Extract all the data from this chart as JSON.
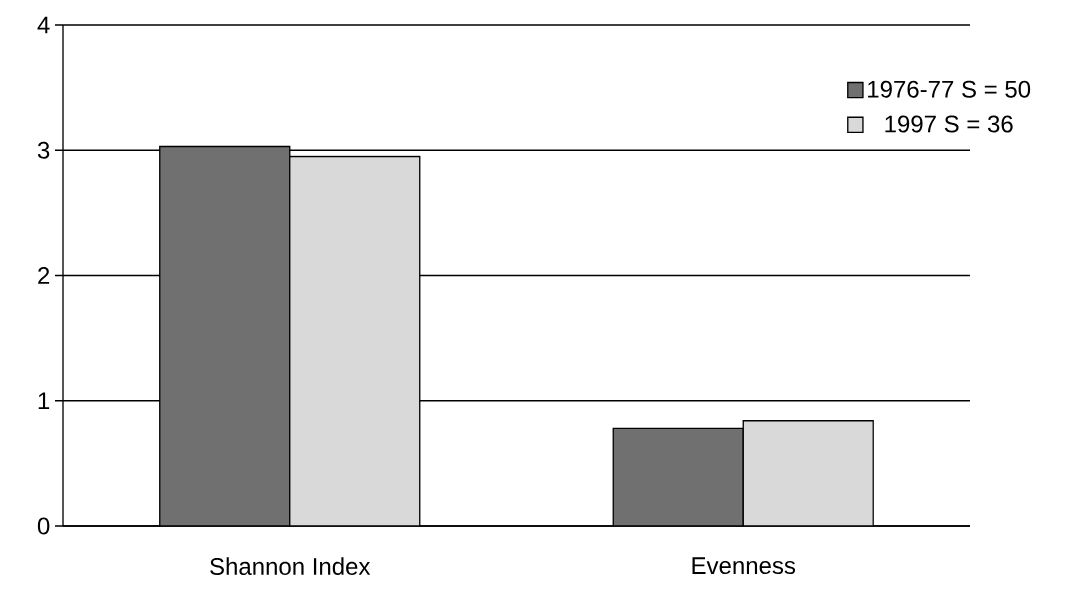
{
  "chart_data": {
    "type": "bar",
    "categories": [
      "Shannon Index",
      "Evenness"
    ],
    "series": [
      {
        "name": "1976-77  S = 50",
        "color": "#707070",
        "values": [
          3.03,
          0.78
        ]
      },
      {
        "name": "1997  S = 36",
        "color": "#d9d9d9",
        "values": [
          2.95,
          0.84
        ]
      }
    ],
    "ylim": [
      0,
      4
    ],
    "yticks": [
      0,
      1,
      2,
      3,
      4
    ],
    "grid": "y",
    "legend": "top right"
  }
}
